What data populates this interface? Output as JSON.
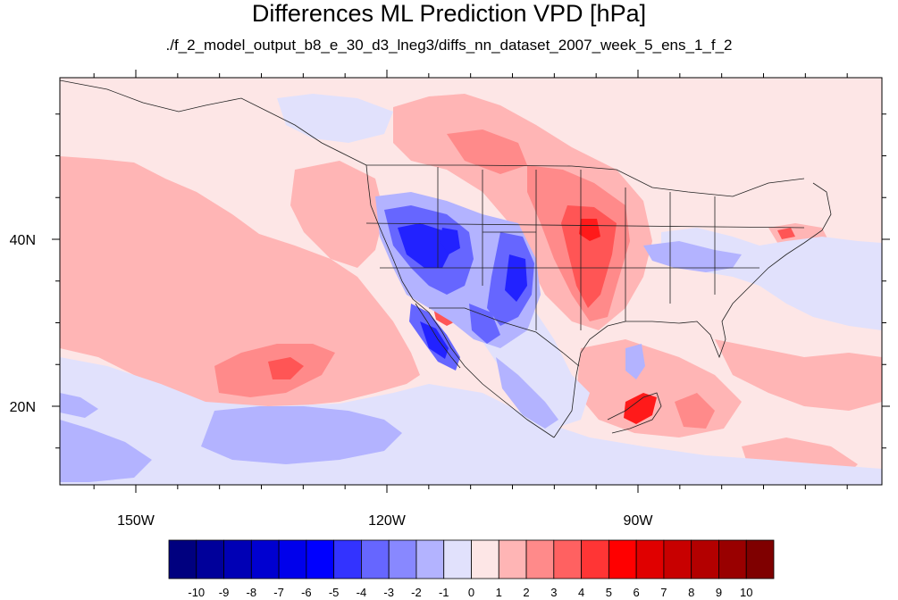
{
  "title": "Differences ML Prediction VPD [hPa]",
  "subtitle": "./f_2_model_output_b8_e_30_d3_lneg3/diffs_nn_dataset_2007_week_5_ens_1_f_2",
  "map": {
    "region": "North America and eastern Pacific",
    "x_ticks": [
      {
        "lon": -150,
        "label": "150W"
      },
      {
        "lon": -120,
        "label": "120W"
      },
      {
        "lon": -90,
        "label": "90W"
      }
    ],
    "y_ticks": [
      {
        "lat": 40,
        "label": "40N"
      },
      {
        "lat": 20,
        "label": "20N"
      }
    ],
    "background_color": "#fde6e6"
  },
  "colorbar": {
    "colors": [
      "#00007f",
      "#00009a",
      "#0000b5",
      "#0000d0",
      "#0000eb",
      "#0000ff",
      "#3333ff",
      "#6666ff",
      "#8888ff",
      "#b3b3ff",
      "#e1e1fc",
      "#fde6e6",
      "#ffb5b5",
      "#ff8a8a",
      "#ff6161",
      "#ff3535",
      "#ff0000",
      "#e00000",
      "#c80000",
      "#b30000",
      "#990000",
      "#7f0000"
    ],
    "labels": [
      "-10",
      "-9",
      "-8",
      "-7",
      "-6",
      "-5",
      "-4",
      "-3",
      "-2",
      "-1",
      "0",
      "1",
      "2",
      "3",
      "4",
      "5",
      "6",
      "7",
      "8",
      "9",
      "10"
    ]
  }
}
